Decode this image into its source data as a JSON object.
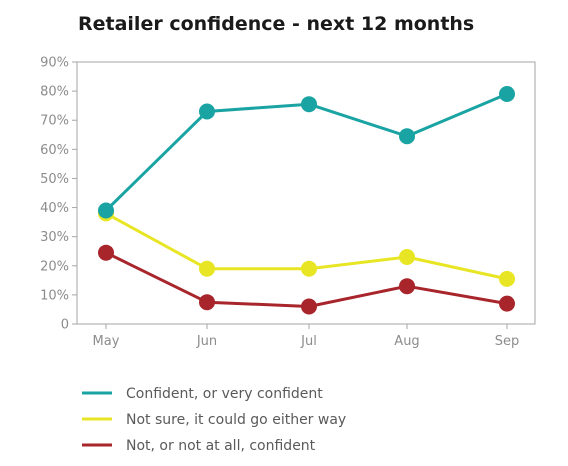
{
  "chart_data": {
    "type": "line",
    "title": "Retailer confidence - next 12 months",
    "categories": [
      "May",
      "Jun",
      "Jul",
      "Aug",
      "Sep"
    ],
    "y_ticks": [
      "0",
      "10%",
      "20%",
      "30%",
      "40%",
      "50%",
      "60%",
      "70%",
      "80%",
      "90%"
    ],
    "ylim": [
      0,
      90
    ],
    "y_unit": "%",
    "grid": false,
    "legend_position": "bottom",
    "series": [
      {
        "name": "Confident, or very confident",
        "color": "#1aa3a3",
        "values": [
          39,
          73,
          75.5,
          64.5,
          79
        ]
      },
      {
        "name": "Not sure, it could go either way",
        "color": "#e8e624",
        "values": [
          38,
          19,
          19,
          23,
          15.5
        ]
      },
      {
        "name": "Not, or not at all, confident",
        "color": "#a8252b",
        "values": [
          24.5,
          7.5,
          6,
          13,
          7
        ]
      }
    ]
  }
}
